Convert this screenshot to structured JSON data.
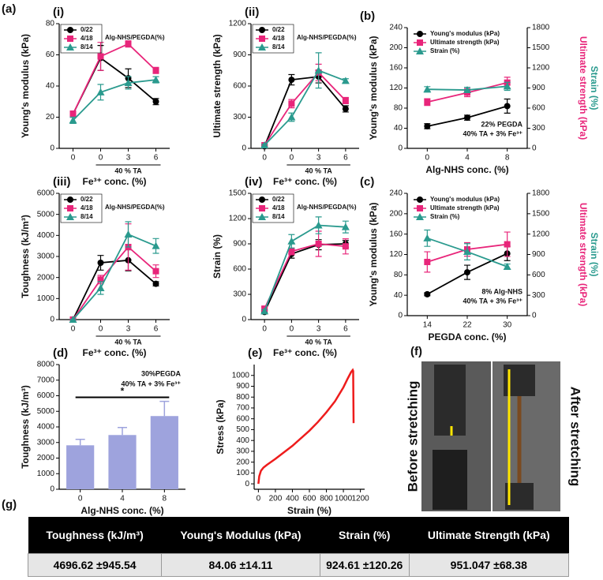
{
  "panel_labels": {
    "a": "(a)",
    "f": "(f)",
    "g": "(g)"
  },
  "photo": {
    "before": "Before stretching",
    "after": "After stretching"
  },
  "table": {
    "headers": [
      "Toughness (kJ/m³)",
      "Young's Modulus (kPa)",
      "Strain (%)",
      "Ultimate Strength (kPa)"
    ],
    "rows": [
      [
        "4696.62 ±945.54",
        "84.06 ±14.11",
        "924.61 ±120.26",
        "951.047 ±68.38"
      ]
    ]
  },
  "chart_data": [
    {
      "type": "line",
      "panel": "(i)",
      "ylabel": "Young's modulus (kPa)",
      "xlabel": "Fe³⁺ conc. (%)",
      "bracket_label": "40 % TA",
      "legend_title": "Alg-NHS/PEGDA(%)",
      "categories": [
        "0",
        "0",
        "3",
        "6"
      ],
      "ylim": [
        0,
        80
      ],
      "yticks": [
        0,
        20,
        40,
        60,
        80
      ],
      "series": [
        {
          "name": "0/22",
          "color": "#000000",
          "marker": "circle",
          "values": [
            22,
            58,
            45,
            30
          ],
          "errors": [
            2,
            8,
            6,
            2
          ]
        },
        {
          "name": "4/18",
          "color": "#e8257a",
          "marker": "square",
          "values": [
            22,
            59,
            67,
            50
          ],
          "errors": [
            2,
            9,
            2,
            2
          ]
        },
        {
          "name": "8/14",
          "color": "#2a9a8e",
          "marker": "triangle",
          "values": [
            18,
            36,
            42,
            44
          ],
          "errors": [
            2,
            5,
            4,
            2
          ]
        }
      ]
    },
    {
      "type": "line",
      "panel": "(ii)",
      "ylabel": "Ultimate strength (kPa)",
      "xlabel": "Fe³⁺ conc. (%)",
      "bracket_label": "40 % TA",
      "legend_title": "Alg-NHS/PEGDA(%)",
      "categories": [
        "0",
        "0",
        "3",
        "6"
      ],
      "ylim": [
        0,
        1200
      ],
      "yticks": [
        0,
        300,
        600,
        900,
        1200
      ],
      "series": [
        {
          "name": "0/22",
          "color": "#000000",
          "marker": "circle",
          "values": [
            20,
            660,
            690,
            380
          ],
          "errors": [
            10,
            50,
            60,
            30
          ]
        },
        {
          "name": "4/18",
          "color": "#e8257a",
          "marker": "square",
          "values": [
            30,
            430,
            730,
            460
          ],
          "errors": [
            10,
            40,
            80,
            30
          ]
        },
        {
          "name": "8/14",
          "color": "#2a9a8e",
          "marker": "triangle",
          "values": [
            30,
            300,
            750,
            650
          ],
          "errors": [
            10,
            40,
            170,
            20
          ]
        }
      ]
    },
    {
      "type": "line",
      "panel": "(b)",
      "ylabel": "Young's modulus (kPa)",
      "xlabel": "Alg-NHS conc. (%)",
      "y2label": [
        {
          "text": "Ultimate strength (kPa)",
          "color": "#e8257a"
        },
        {
          "text": "Strain (%)",
          "color": "#2a9a8e"
        }
      ],
      "annotations": [
        "22% PEGDA",
        "40% TA + 3% Fe³⁺"
      ],
      "annotation_corner": "bottom-right",
      "categories": [
        "0",
        "4",
        "8"
      ],
      "ylim": [
        0,
        240
      ],
      "yticks": [
        0,
        40,
        80,
        120,
        160,
        200,
        240
      ],
      "y2lim": [
        0,
        1800
      ],
      "y2ticks": [
        0,
        300,
        600,
        900,
        1200,
        1500,
        1800
      ],
      "series": [
        {
          "name": "Young's modulus (kPa)",
          "color": "#000000",
          "marker": "circle",
          "values": [
            44,
            61,
            84
          ],
          "errors": [
            5,
            5,
            14
          ]
        },
        {
          "name": "Ultimate strength (kPa)",
          "color": "#e8257a",
          "marker": "square",
          "axis": "y2",
          "values": [
            690,
            830,
            980
          ],
          "errors": [
            50,
            60,
            80
          ]
        },
        {
          "name": "Strain (%)",
          "color": "#2a9a8e",
          "marker": "triangle",
          "axis": "y2",
          "values": [
            880,
            870,
            925
          ],
          "errors": [
            40,
            40,
            60
          ]
        }
      ]
    },
    {
      "type": "line",
      "panel": "(iii)",
      "ylabel": "Toughness (kJ/m³)",
      "xlabel": "Fe³⁺ conc. (%)",
      "bracket_label": "40 % TA",
      "legend_title": "Alg-NHS/PEGDA(%)",
      "categories": [
        "0",
        "0",
        "3",
        "6"
      ],
      "ylim": [
        0,
        6000
      ],
      "yticks": [
        0,
        1000,
        2000,
        3000,
        4000,
        5000,
        6000
      ],
      "series": [
        {
          "name": "0/22",
          "color": "#000000",
          "marker": "circle",
          "values": [
            0,
            2700,
            2820,
            1700
          ],
          "errors": [
            0,
            350,
            500,
            100
          ]
        },
        {
          "name": "4/18",
          "color": "#e8257a",
          "marker": "square",
          "values": [
            0,
            1900,
            3450,
            2300
          ],
          "errors": [
            0,
            200,
            1100,
            300
          ]
        },
        {
          "name": "8/14",
          "color": "#2a9a8e",
          "marker": "triangle",
          "values": [
            0,
            1500,
            4050,
            3500
          ],
          "errors": [
            0,
            300,
            600,
            350
          ]
        }
      ]
    },
    {
      "type": "line",
      "panel": "(iv)",
      "ylabel": "Strain (%)",
      "xlabel": "Fe³⁺ conc. (%)",
      "bracket_label": "40 % TA",
      "legend_title": "Alg-NHS/PEGDA(%)",
      "categories": [
        "0",
        "0",
        "3",
        "6"
      ],
      "ylim": [
        0,
        1500
      ],
      "yticks": [
        0,
        300,
        600,
        900,
        1200,
        1500
      ],
      "series": [
        {
          "name": "0/22",
          "color": "#000000",
          "marker": "circle",
          "values": [
            90,
            780,
            890,
            900
          ],
          "errors": [
            20,
            50,
            60,
            40
          ]
        },
        {
          "name": "4/18",
          "color": "#e8257a",
          "marker": "square",
          "values": [
            130,
            810,
            900,
            870
          ],
          "errors": [
            20,
            40,
            150,
            90
          ]
        },
        {
          "name": "8/14",
          "color": "#2a9a8e",
          "marker": "triangle",
          "values": [
            100,
            930,
            1120,
            1100
          ],
          "errors": [
            20,
            80,
            100,
            70
          ]
        }
      ]
    },
    {
      "type": "line",
      "panel": "(c)",
      "ylabel": "Young's modulus (kPa)",
      "xlabel": "PEGDA conc. (%)",
      "y2label": [
        {
          "text": "Ultimate strength (kPa)",
          "color": "#e8257a"
        },
        {
          "text": "Strain (%)",
          "color": "#2a9a8e"
        }
      ],
      "annotations": [
        "8% Alg-NHS",
        "40% TA + 3% Fe³⁺"
      ],
      "annotation_corner": "bottom-right",
      "categories": [
        "14",
        "22",
        "30"
      ],
      "ylim": [
        0,
        240
      ],
      "yticks": [
        0,
        40,
        80,
        120,
        160,
        200,
        240
      ],
      "y2lim": [
        0,
        1800
      ],
      "y2ticks": [
        0,
        300,
        600,
        900,
        1200,
        1500,
        1800
      ],
      "series": [
        {
          "name": "Young's modulus (kPa)",
          "color": "#000000",
          "marker": "circle",
          "values": [
            42,
            85,
            122
          ],
          "errors": [
            3,
            14,
            14
          ]
        },
        {
          "name": "Ultimate strength (kPa)",
          "color": "#e8257a",
          "marker": "square",
          "axis": "y2",
          "values": [
            790,
            975,
            1050
          ],
          "errors": [
            150,
            100,
            180
          ]
        },
        {
          "name": "Strain (%)",
          "color": "#2a9a8e",
          "marker": "triangle",
          "axis": "y2",
          "values": [
            1140,
            940,
            720
          ],
          "errors": [
            120,
            120,
            40
          ]
        }
      ]
    },
    {
      "type": "bar",
      "panel": "(d)",
      "ylabel": "Toughness (kJ/m³)",
      "xlabel": "Alg-NHS conc. (%)",
      "annotations": [
        "30%PEGDA",
        "40% TA + 3% Fe³⁺"
      ],
      "annotation_corner": "top-right",
      "significance": "*",
      "categories": [
        "0",
        "4",
        "8"
      ],
      "ylim": [
        0,
        8000
      ],
      "yticks": [
        0,
        1000,
        2000,
        3000,
        4000,
        5000,
        6000,
        7000,
        8000
      ],
      "color": "#9ea3dd",
      "values": [
        2820,
        3480,
        4696.62
      ],
      "errors": [
        380,
        480,
        945.54
      ]
    },
    {
      "type": "line",
      "panel": "(e)",
      "ylabel": "Stress (kPa)",
      "xlabel": "Strain (%)",
      "xlim": [
        -50,
        1250
      ],
      "xticks": [
        0,
        200,
        400,
        600,
        800,
        1000,
        1200
      ],
      "ylim": [
        -50,
        1100
      ],
      "yticks": [
        0,
        100,
        200,
        300,
        400,
        500,
        600,
        700,
        800,
        900,
        1000
      ],
      "x": [
        0,
        10,
        30,
        60,
        100,
        200,
        300,
        400,
        500,
        600,
        700,
        800,
        900,
        1000,
        1050,
        1090,
        1110,
        1115,
        1120
      ],
      "series": [
        {
          "color": "#ee1c1c",
          "values": [
            0,
            70,
            120,
            150,
            175,
            230,
            290,
            350,
            420,
            490,
            570,
            660,
            760,
            890,
            970,
            1030,
            1050,
            1040,
            560
          ]
        }
      ]
    }
  ]
}
